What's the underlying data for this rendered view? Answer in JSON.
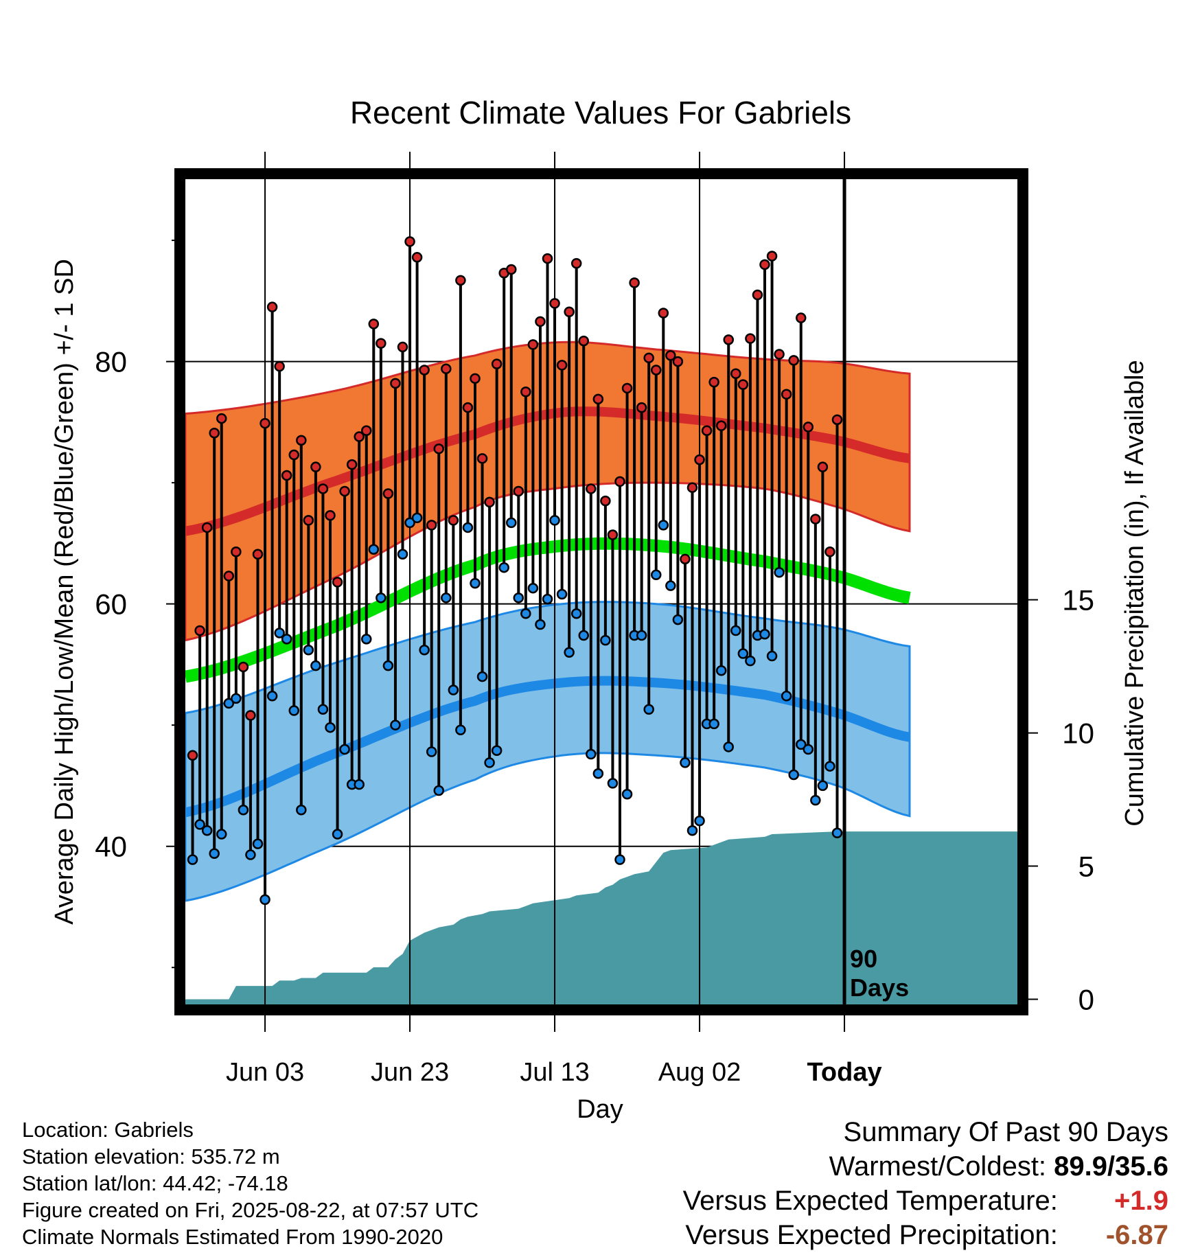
{
  "chart_data": {
    "type": "line",
    "title": "Recent Climate Values For Gabriels",
    "xlabel": "Day",
    "ylabel": "Average Daily High/Low/Mean (Red/Blue/Green) +/- 1 SD",
    "y2label": "Cumulative Precipitation (in), If Available",
    "xticks": [
      "Jun 03",
      "Jun 23",
      "Jul 13",
      "Aug 02",
      "Today"
    ],
    "xtick_days": [
      11,
      31,
      51,
      71,
      91
    ],
    "yticks": [
      40,
      60,
      80
    ],
    "y2ticks": [
      0,
      5,
      10,
      15
    ],
    "ylim": [
      26.5,
      95.5
    ],
    "y2lim": [
      -0.4,
      31
    ],
    "today_label": "90 Days",
    "colors": {
      "high": "#d42a2a",
      "high_band": "#f07832",
      "low": "#1e88e5",
      "low_band": "#80c0e8",
      "mean": "#00e000",
      "precip": "#4a9aa4"
    },
    "normal_high": {
      "x": [
        0,
        20,
        40,
        52,
        65,
        80,
        90,
        100
      ],
      "mean": [
        66,
        70,
        74,
        75.8,
        75.5,
        74.5,
        73.5,
        72
      ],
      "upper": [
        75.7,
        77.5,
        80.5,
        81.6,
        81,
        80.2,
        79.9,
        79
      ],
      "lower": [
        57,
        62,
        68,
        69.6,
        70,
        69.5,
        68,
        66
      ]
    },
    "normal_low": {
      "x": [
        0,
        20,
        40,
        52,
        65,
        80,
        90,
        100
      ],
      "mean": [
        42.8,
        47.5,
        52,
        53.5,
        53.5,
        52.5,
        51,
        49
      ],
      "upper": [
        51,
        55,
        58.5,
        60,
        60,
        58.8,
        58,
        56.5
      ],
      "lower": [
        35.5,
        40,
        45.5,
        47.5,
        47.5,
        46.5,
        45,
        42.5
      ]
    },
    "normal_mean": {
      "x": [
        0,
        20,
        40,
        52,
        65,
        80,
        90,
        100
      ],
      "values": [
        54,
        58,
        63.2,
        64.8,
        64.8,
        63.5,
        62.3,
        60.5
      ]
    },
    "series": [
      {
        "name": "High",
        "values": [
          47.5,
          57.8,
          66.3,
          74.1,
          75.3,
          62.3,
          64.3,
          54.8,
          50.8,
          64.1,
          74.9,
          84.5,
          79.6,
          70.6,
          72.3,
          73.5,
          66.9,
          71.3,
          69.5,
          67.3,
          61.8,
          69.3,
          71.5,
          73.8,
          74.3,
          83.1,
          81.5,
          69.1,
          78.2,
          81.2,
          89.9,
          88.6,
          79.3,
          66.5,
          72.8,
          79.4,
          66.9,
          86.7,
          76.2,
          78.6,
          72.0,
          68.4,
          79.8,
          87.3,
          87.6,
          69.3,
          77.5,
          81.4,
          83.3,
          88.5,
          84.8,
          79.7,
          84.1,
          88.1,
          81.7,
          69.5,
          76.9,
          68.5,
          65.7,
          70.1,
          77.8,
          86.5,
          76.2,
          80.3,
          79.3,
          84.0,
          80.5,
          80.0,
          63.7,
          69.6,
          71.9,
          74.3,
          78.3,
          74.7,
          81.8,
          79.0,
          78.1,
          81.9,
          85.5,
          88.0,
          88.7,
          80.6,
          77.3,
          80.1,
          83.6,
          74.6,
          67.0,
          71.3,
          64.3,
          75.2
        ]
      },
      {
        "name": "Low",
        "values": [
          38.9,
          41.8,
          41.3,
          39.4,
          41.0,
          51.8,
          52.2,
          43.0,
          39.3,
          40.2,
          35.6,
          52.4,
          57.6,
          57.1,
          51.2,
          43.0,
          56.2,
          54.9,
          51.3,
          49.8,
          41.0,
          48.0,
          45.1,
          45.1,
          57.1,
          64.5,
          60.5,
          54.9,
          50.0,
          64.1,
          66.7,
          67.1,
          56.2,
          47.8,
          44.6,
          60.5,
          52.9,
          49.6,
          66.3,
          61.7,
          54.0,
          46.9,
          47.9,
          63.0,
          66.7,
          60.5,
          59.2,
          61.3,
          58.3,
          60.4,
          66.9,
          60.8,
          56.0,
          59.2,
          57.4,
          47.6,
          46.0,
          57.0,
          45.2,
          38.9,
          44.3,
          57.4,
          57.4,
          51.3,
          62.4,
          66.5,
          61.5,
          58.7,
          46.9,
          41.3,
          42.1,
          50.1,
          50.1,
          54.5,
          48.2,
          57.8,
          55.9,
          55.3,
          57.4,
          57.5,
          55.7,
          62.6,
          52.4,
          45.9,
          48.4,
          48.0,
          43.8,
          45.0,
          46.6,
          41.1
        ]
      },
      {
        "name": "Cumulative Precipitation",
        "x": [
          0,
          6,
          7,
          12,
          13,
          15,
          16,
          18,
          19,
          25,
          26,
          28,
          29,
          30,
          31,
          33,
          34,
          35,
          37,
          38,
          39,
          41,
          42,
          46,
          47,
          48,
          53,
          54,
          57,
          58,
          59,
          60,
          61,
          62,
          64,
          66,
          67,
          72,
          74,
          75,
          80,
          81,
          90,
          100
        ],
        "values": [
          0,
          0,
          0.5,
          0.5,
          0.7,
          0.7,
          0.8,
          0.8,
          1.0,
          1.0,
          1.2,
          1.2,
          1.5,
          1.7,
          2.2,
          2.5,
          2.6,
          2.7,
          2.8,
          3.0,
          3.1,
          3.2,
          3.3,
          3.4,
          3.5,
          3.6,
          3.8,
          3.9,
          4.0,
          4.2,
          4.3,
          4.5,
          4.6,
          4.7,
          4.8,
          5.5,
          5.6,
          5.7,
          5.9,
          6.0,
          6.1,
          6.2,
          6.3,
          6.3
        ]
      }
    ]
  },
  "info": {
    "location": "Location: Gabriels",
    "elevation": "Station elevation: 535.72 m",
    "latlon": "Station lat/lon: 44.42; -74.18",
    "created": "Figure created on Fri, 2025-08-22, at 07:57 UTC",
    "normals": "Climate Normals Estimated From 1990-2020"
  },
  "summary": {
    "title": "Summary Of Past 90 Days",
    "warmest_label": "Warmest/Coldest:",
    "warmest_value": "89.9/35.6",
    "temp_label": "Versus Expected Temperature:",
    "temp_value": "+1.9",
    "temp_color": "#d42a2a",
    "precip_label": "Versus Expected Precipitation:",
    "precip_value": "-6.87",
    "precip_color": "#a0522d"
  }
}
